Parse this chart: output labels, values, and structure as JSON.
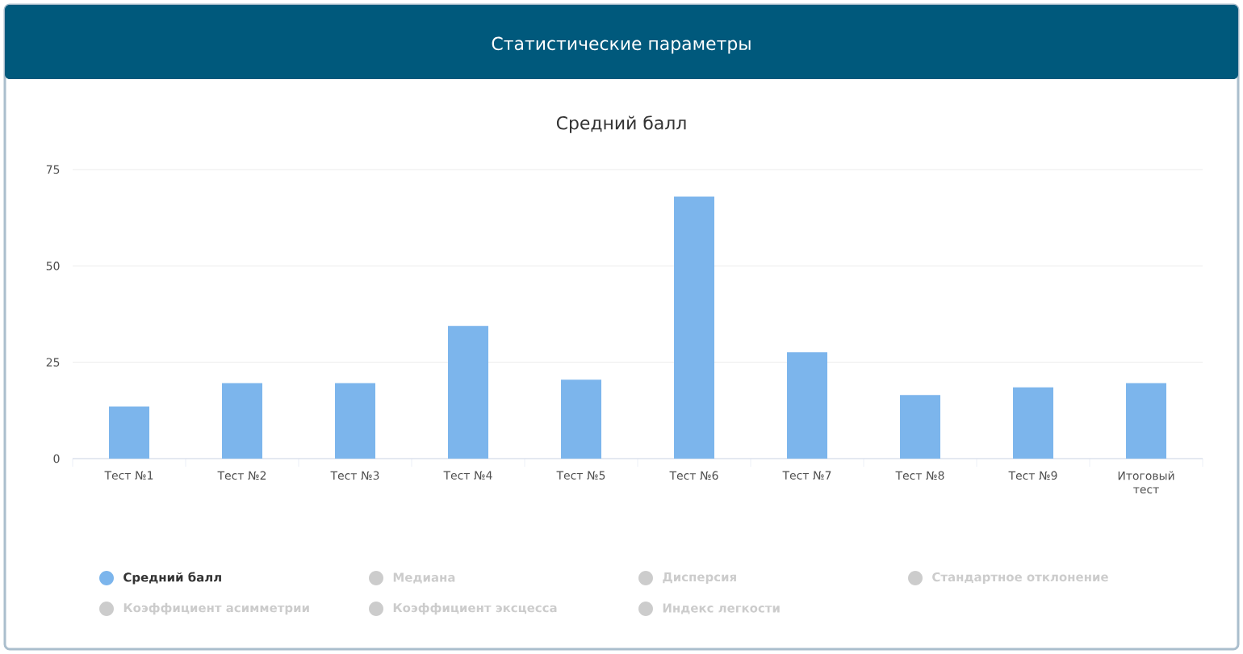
{
  "chart_data": {
    "type": "bar",
    "title": "Статистические параметры",
    "subtitle": "Средний балл",
    "categories": [
      "Тест №1",
      "Тест №2",
      "Тест №3",
      "Тест №4",
      "Тест №5",
      "Тест №6",
      "Тест №7",
      "Тест №8",
      "Тест №9",
      "Итоговый тест"
    ],
    "series": [
      {
        "name": "Средний балл",
        "color": "#7cb5ec",
        "values": [
          13.5,
          19.6,
          19.6,
          34.4,
          20.5,
          68,
          27.6,
          16.5,
          18.5,
          19.6
        ]
      },
      {
        "name": "Медиана",
        "color": "#cccccc",
        "values": [
          null,
          null,
          null,
          null,
          null,
          null,
          null,
          null,
          null,
          null
        ]
      },
      {
        "name": "Дисперсия",
        "color": "#cccccc",
        "values": [
          null,
          null,
          null,
          null,
          null,
          null,
          null,
          null,
          null,
          null
        ]
      },
      {
        "name": "Стандартное отклонение",
        "color": "#cccccc",
        "values": [
          null,
          null,
          null,
          null,
          null,
          null,
          null,
          null,
          null,
          null
        ]
      },
      {
        "name": "Коэффициент асимметрии",
        "color": "#cccccc",
        "values": [
          null,
          null,
          null,
          null,
          null,
          null,
          null,
          null,
          null,
          null
        ]
      },
      {
        "name": "Коэффициент эксцесса",
        "color": "#cccccc",
        "values": [
          null,
          null,
          null,
          null,
          null,
          null,
          null,
          null,
          null,
          null
        ]
      },
      {
        "name": "Индекс легкости",
        "color": "#cccccc",
        "values": [
          null,
          null,
          null,
          null,
          null,
          null,
          null,
          null,
          null,
          null
        ]
      }
    ],
    "ylim": [
      0,
      75
    ],
    "yticks": [
      0,
      25,
      50,
      75
    ],
    "grid": "y",
    "legend": "bottom"
  }
}
